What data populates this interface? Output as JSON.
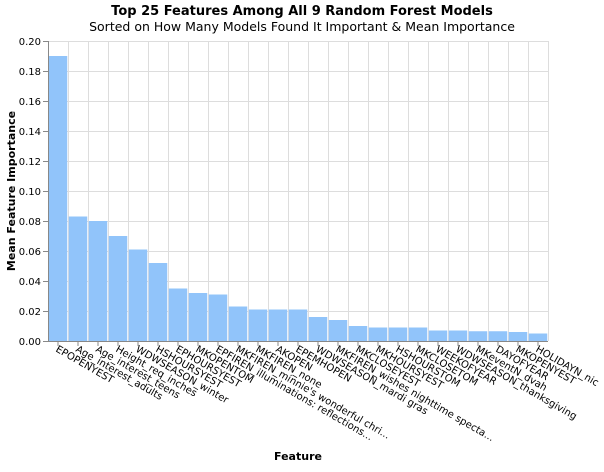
{
  "title": "Top 25 Features Among All 9 Random Forest Models",
  "subtitle": "Sorted on How Many Models Found It Important & Mean Importance",
  "chart_data": {
    "type": "bar",
    "title": "Top 25 Features Among All 9 Random Forest Models",
    "subtitle": "Sorted on How Many Models Found It Important & Mean Importance",
    "xlabel": "Feature",
    "ylabel": "Mean Feature Importance",
    "ylim": [
      0,
      0.2
    ],
    "yticks": [
      0.0,
      0.02,
      0.04,
      0.06,
      0.08,
      0.1,
      0.12,
      0.14,
      0.16,
      0.18,
      0.2
    ],
    "ytick_labels": [
      "0.00",
      "0.02",
      "0.04",
      "0.06",
      "0.08",
      "0.10",
      "0.12",
      "0.14",
      "0.16",
      "0.18",
      "0.20"
    ],
    "grid": true,
    "bar_color": "#91c4fa",
    "categories": [
      "EPOPENYEST",
      "Age_interest_adults",
      "Age_interest_teens",
      "Height_req_inches",
      "WDWSEASON_winter",
      "HSHOURSYEST",
      "EPHOURSYEST",
      "MKOPENTOM",
      "EPFIREN_illuminations: reflections...",
      "MKFIREN_minnie's wonderful chri...",
      "MKFIREN_none",
      "AKOPEN",
      "EPEMHOPEN",
      "WDWSEASON_mardi gras",
      "MKFIREN_wishes nighttime specta...",
      "MKCLOSEYEST",
      "MKHOURSYEST",
      "HSHOURSTOM",
      "MKCLOSETOM",
      "WEEKOFYEAR",
      "WDWSEASON_thanksgiving",
      "MKeventN_dvah",
      "DAYOFYEAR",
      "MKOPENYEST",
      "HOLIDAYN_nic"
    ],
    "values": [
      0.19,
      0.083,
      0.08,
      0.07,
      0.061,
      0.052,
      0.035,
      0.032,
      0.031,
      0.023,
      0.021,
      0.021,
      0.021,
      0.016,
      0.014,
      0.01,
      0.009,
      0.009,
      0.009,
      0.007,
      0.007,
      0.0065,
      0.0065,
      0.006,
      0.005
    ]
  }
}
